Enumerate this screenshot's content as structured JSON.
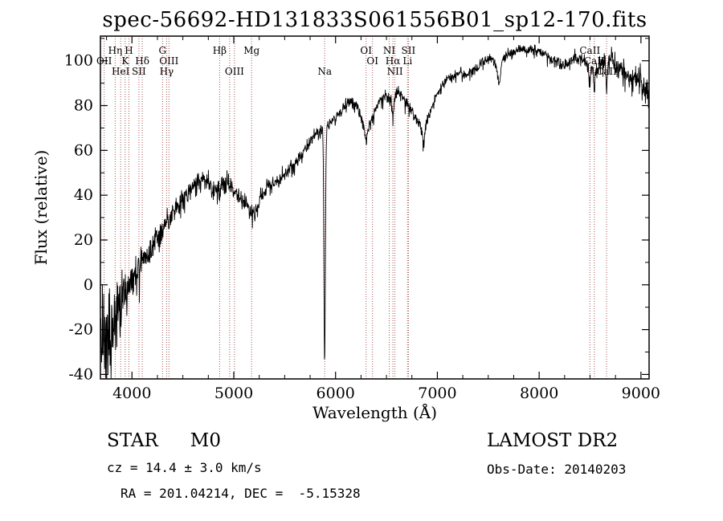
{
  "title": "spec-56692-HD131833S061556B01_sp12-170.fits",
  "footer": {
    "object_type": "STAR",
    "subclass": "M0",
    "survey": "LAMOST DR2",
    "cz": "cz = 14.4 ± 3.0 km/s",
    "obs_date": "Obs-Date: 20140203",
    "ra_dec": "RA = 201.04214, DEC =  -5.15328"
  },
  "chart_data": {
    "type": "line",
    "title": "spec-56692-HD131833S061556B01_sp12-170.fits",
    "xlabel": "Wavelength (Å)",
    "ylabel": "Flux (relative)",
    "xlim": [
      3690,
      9080
    ],
    "ylim": [
      -42,
      111
    ],
    "xticks": [
      4000,
      5000,
      6000,
      7000,
      8000,
      9000
    ],
    "yticks": [
      -40,
      -20,
      0,
      20,
      40,
      60,
      80,
      100
    ],
    "x_minor_step": 250,
    "y_minor_step": 10,
    "grid": false,
    "line_color": "#000000",
    "marker_color": "#a65353",
    "label_color": "#000000",
    "seed": 20140203,
    "continuum": [
      [
        3700,
        -15
      ],
      [
        3760,
        -8
      ],
      [
        3820,
        -4
      ],
      [
        3880,
        -2
      ],
      [
        3940,
        2
      ],
      [
        4000,
        7
      ],
      [
        4060,
        11
      ],
      [
        4120,
        15
      ],
      [
        4200,
        21
      ],
      [
        4300,
        28
      ],
      [
        4400,
        34
      ],
      [
        4500,
        41
      ],
      [
        4600,
        46
      ],
      [
        4700,
        50
      ],
      [
        4760,
        47
      ],
      [
        4820,
        44
      ],
      [
        4880,
        47
      ],
      [
        4940,
        48
      ],
      [
        5000,
        44
      ],
      [
        5060,
        41
      ],
      [
        5120,
        38
      ],
      [
        5170,
        34
      ],
      [
        5210,
        33
      ],
      [
        5260,
        41
      ],
      [
        5320,
        45
      ],
      [
        5400,
        47
      ],
      [
        5480,
        50
      ],
      [
        5560,
        54
      ],
      [
        5640,
        58
      ],
      [
        5720,
        63
      ],
      [
        5800,
        68
      ],
      [
        5860,
        71
      ],
      [
        5920,
        72
      ],
      [
        5980,
        75
      ],
      [
        6040,
        78
      ],
      [
        6100,
        82
      ],
      [
        6160,
        84
      ],
      [
        6220,
        80
      ],
      [
        6280,
        72
      ],
      [
        6320,
        70
      ],
      [
        6380,
        78
      ],
      [
        6440,
        84
      ],
      [
        6500,
        86
      ],
      [
        6560,
        84
      ],
      [
        6620,
        88
      ],
      [
        6680,
        84
      ],
      [
        6740,
        80
      ],
      [
        6800,
        74
      ],
      [
        6860,
        72
      ],
      [
        6920,
        77
      ],
      [
        6980,
        84
      ],
      [
        7040,
        90
      ],
      [
        7100,
        93
      ],
      [
        7160,
        95
      ],
      [
        7220,
        96
      ],
      [
        7280,
        94
      ],
      [
        7340,
        96
      ],
      [
        7400,
        99
      ],
      [
        7460,
        101
      ],
      [
        7520,
        103
      ],
      [
        7580,
        99
      ],
      [
        7640,
        102
      ],
      [
        7700,
        104
      ],
      [
        7760,
        105
      ],
      [
        7820,
        106
      ],
      [
        7880,
        105
      ],
      [
        7940,
        106
      ],
      [
        8000,
        105
      ],
      [
        8060,
        104
      ],
      [
        8120,
        102
      ],
      [
        8180,
        100
      ],
      [
        8240,
        99
      ],
      [
        8300,
        102
      ],
      [
        8360,
        103
      ],
      [
        8420,
        102
      ],
      [
        8480,
        100
      ],
      [
        8540,
        98
      ],
      [
        8600,
        100
      ],
      [
        8660,
        101
      ],
      [
        8720,
        102
      ],
      [
        8780,
        99
      ],
      [
        8840,
        97
      ],
      [
        8900,
        94
      ],
      [
        8960,
        95
      ],
      [
        9020,
        92
      ],
      [
        9080,
        88
      ]
    ],
    "noise_profile": [
      [
        3700,
        20
      ],
      [
        3850,
        14
      ],
      [
        3950,
        9
      ],
      [
        4100,
        6
      ],
      [
        4300,
        4.5
      ],
      [
        4700,
        3.5
      ],
      [
        5200,
        3
      ],
      [
        5900,
        2.5
      ],
      [
        6500,
        2.5
      ],
      [
        7200,
        2
      ],
      [
        8000,
        2
      ],
      [
        8500,
        3
      ],
      [
        8800,
        4.5
      ],
      [
        9080,
        5.5
      ]
    ],
    "absorption_features": [
      {
        "center": 5893,
        "depth": 104,
        "width": 7
      },
      {
        "center": 6563,
        "depth": 8,
        "width": 8
      },
      {
        "center": 6867,
        "depth": 7,
        "width": 14
      },
      {
        "center": 7605,
        "depth": 9,
        "width": 14
      },
      {
        "center": 8498,
        "depth": 8,
        "width": 6
      },
      {
        "center": 8542,
        "depth": 10,
        "width": 7
      },
      {
        "center": 8662,
        "depth": 9,
        "width": 7
      },
      {
        "center": 4861,
        "depth": 5,
        "width": 8
      },
      {
        "center": 6300,
        "depth": 5,
        "width": 10
      }
    ],
    "spectral_lines": [
      {
        "wavelength": 3727,
        "label": "OII",
        "row": 1
      },
      {
        "wavelength": 3835,
        "label": "Hη",
        "row": 0
      },
      {
        "wavelength": 3889,
        "label": "HeI",
        "row": 2
      },
      {
        "wavelength": 3933,
        "label": "K",
        "row": 1
      },
      {
        "wavelength": 3970,
        "label": "H",
        "row": 0
      },
      {
        "wavelength": 4068,
        "label": "SII",
        "row": 2
      },
      {
        "wavelength": 4101,
        "label": "Hδ",
        "row": 1
      },
      {
        "wavelength": 4300,
        "label": "G",
        "row": 0
      },
      {
        "wavelength": 4340,
        "label": "Hγ",
        "row": 2
      },
      {
        "wavelength": 4363,
        "label": "OIII",
        "row": 1
      },
      {
        "wavelength": 4861,
        "label": "Hβ",
        "row": 0
      },
      {
        "wavelength": 4959,
        "label": "",
        "row": 1
      },
      {
        "wavelength": 5007,
        "label": "OIII",
        "row": 2
      },
      {
        "wavelength": 5175,
        "label": "Mg",
        "row": 0
      },
      {
        "wavelength": 5893,
        "label": "Na",
        "row": 2
      },
      {
        "wavelength": 6300,
        "label": "OI",
        "row": 0
      },
      {
        "wavelength": 6363,
        "label": "OI",
        "row": 1
      },
      {
        "wavelength": 6527,
        "label": "NI",
        "row": 0
      },
      {
        "wavelength": 6563,
        "label": "Hα",
        "row": 1
      },
      {
        "wavelength": 6583,
        "label": "NII",
        "row": 2
      },
      {
        "wavelength": 6707,
        "label": "Li",
        "row": 1
      },
      {
        "wavelength": 6716,
        "label": "SII",
        "row": 0
      },
      {
        "wavelength": 8498,
        "label": "CaII",
        "row": 0
      },
      {
        "wavelength": 8542,
        "label": "CaII",
        "row": 1
      },
      {
        "wavelength": 8662,
        "label": "CaII",
        "row": 2
      }
    ]
  }
}
